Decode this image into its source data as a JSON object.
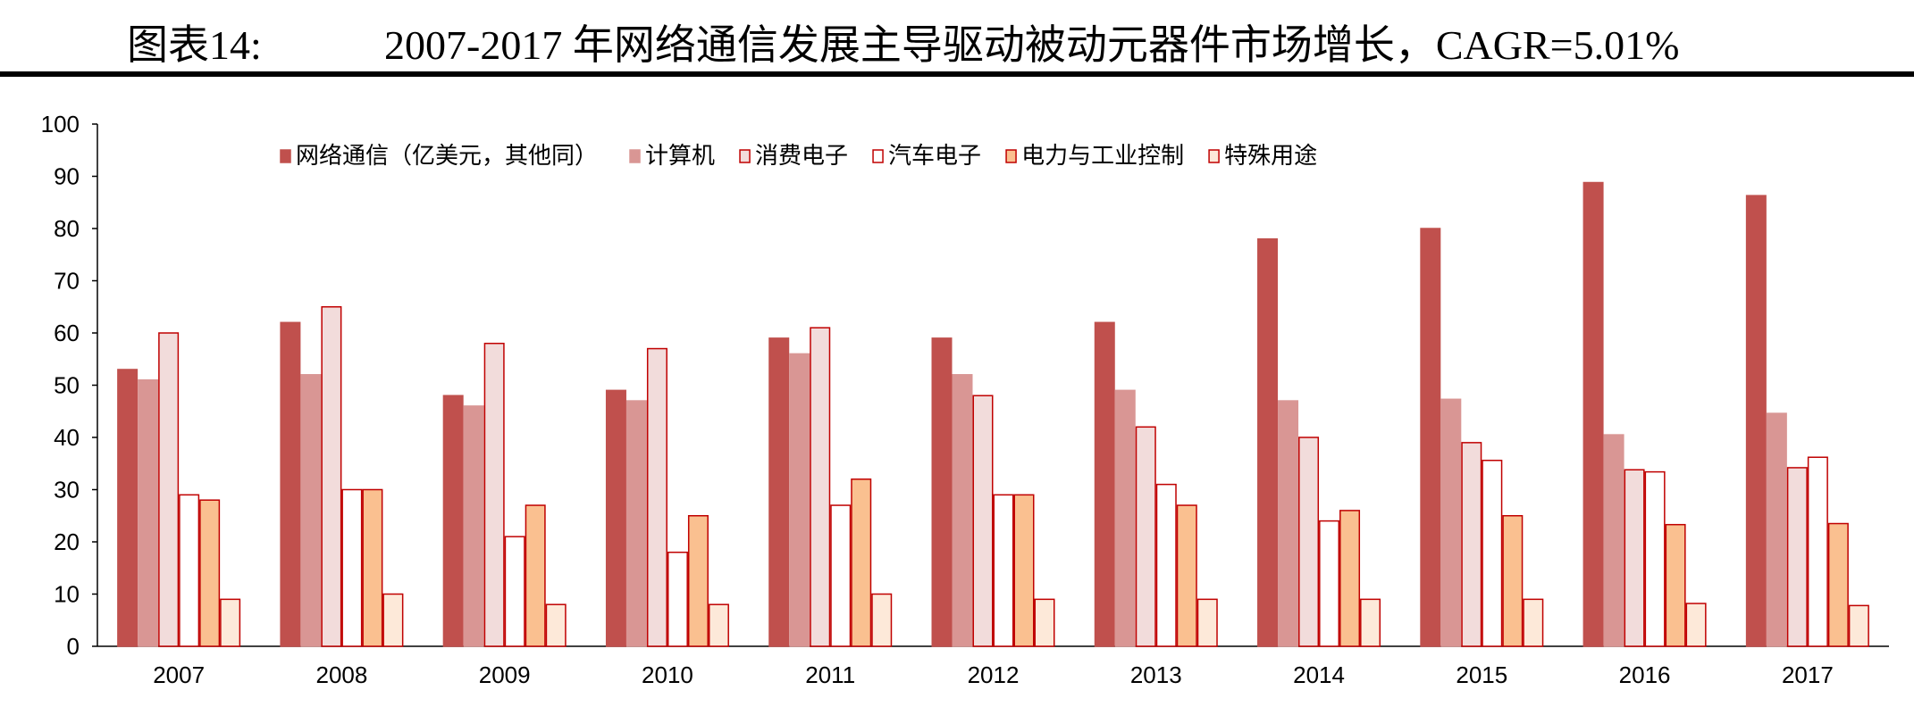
{
  "header": {
    "figure_label": "图表14:",
    "title": "2007-2017 年网络通信发展主导驱动被动元器件市场增长，CAGR=5.01%"
  },
  "chart_data": {
    "type": "bar",
    "title": "2007-2017 年网络通信发展主导驱动被动元器件市场增长，CAGR=5.01%",
    "categories": [
      "2007",
      "2008",
      "2009",
      "2010",
      "2011",
      "2012",
      "2013",
      "2014",
      "2015",
      "2016",
      "2017"
    ],
    "ylim": [
      0,
      100
    ],
    "yticks": [
      0,
      10,
      20,
      30,
      40,
      50,
      60,
      70,
      80,
      90,
      100
    ],
    "grid": false,
    "legend": "top",
    "series": [
      {
        "name": "网络通信（亿美元，其他同）",
        "fill": "#C0504D",
        "stroke": "#C0504D",
        "values": [
          53,
          62,
          48,
          49,
          59,
          59,
          62,
          78,
          80,
          88.8,
          86.3
        ]
      },
      {
        "name": "计算机",
        "fill": "#D99694",
        "stroke": "#D99694",
        "values": [
          51,
          52,
          46,
          47,
          56,
          52,
          49,
          47,
          47.3,
          40.5,
          44.6
        ]
      },
      {
        "name": "消费电子",
        "fill": "#F2DCDB",
        "stroke": "#C00000",
        "values": [
          60,
          65,
          58,
          57,
          61,
          48,
          42,
          40,
          39,
          33.8,
          34.2
        ]
      },
      {
        "name": "汽车电子",
        "fill": "#FFFFFF",
        "stroke": "#C00000",
        "values": [
          29,
          30,
          21,
          18,
          27,
          29,
          31,
          24,
          35.6,
          33.4,
          36.2
        ]
      },
      {
        "name": "电力与工业控制",
        "fill": "#FAC090",
        "stroke": "#C00000",
        "values": [
          28,
          30,
          27,
          25,
          32,
          29,
          27,
          26,
          25,
          23.3,
          23.5
        ]
      },
      {
        "name": "特殊用途",
        "fill": "#FDE9D9",
        "stroke": "#C00000",
        "values": [
          9,
          10,
          8,
          8,
          10,
          9,
          9,
          9,
          9,
          8.2,
          7.8
        ]
      }
    ]
  }
}
